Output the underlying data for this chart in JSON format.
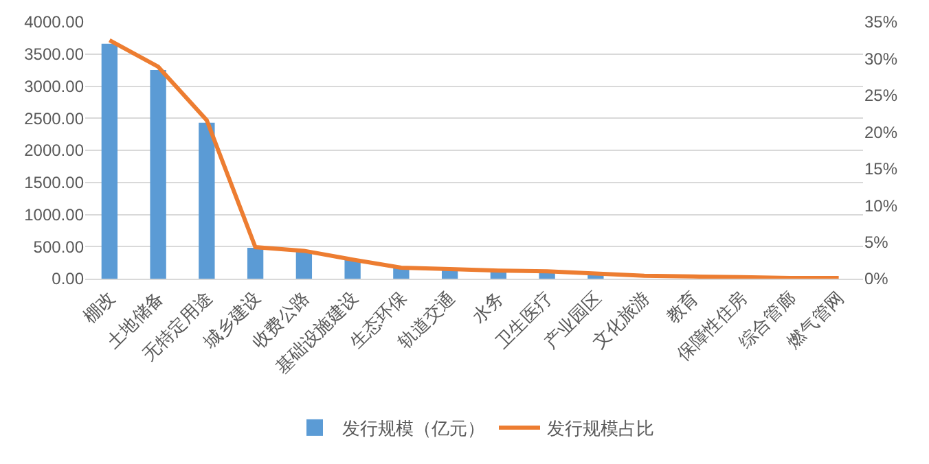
{
  "chart_data": {
    "type": "bar",
    "categories": [
      "棚改",
      "土地储备",
      "无特定用途",
      "城乡建设",
      "收费公路",
      "基础设施建设",
      "生态环保",
      "轨道交通",
      "水务",
      "卫生医疗",
      "产业园区",
      "文化旅游",
      "教育",
      "保障性住房",
      "综合管廊",
      "燃气管网"
    ],
    "series": [
      {
        "name": "发行规模（亿元）",
        "color": "#5b9bd5",
        "values": [
          3660,
          3250,
          2430,
          480,
          430,
          290,
          170,
          150,
          120,
          110,
          80,
          null,
          null,
          null,
          null,
          null
        ]
      },
      {
        "name": "发行规模占比",
        "type": "line",
        "axis": "y2",
        "color": "#ed7d31",
        "values": [
          32.5,
          28.9,
          21.6,
          4.3,
          3.8,
          2.6,
          1.5,
          1.3,
          1.1,
          1.0,
          0.7,
          0.4,
          0.3,
          0.2,
          0.1,
          0.1
        ]
      }
    ],
    "ylim": [
      0,
      4000
    ],
    "yticks": [
      {
        "value": 0,
        "label": "0.00"
      },
      {
        "value": 500,
        "label": "500.00"
      },
      {
        "value": 1000,
        "label": "1000.00"
      },
      {
        "value": 1500,
        "label": "1500.00"
      },
      {
        "value": 2000,
        "label": "2000.00"
      },
      {
        "value": 2500,
        "label": "2500.00"
      },
      {
        "value": 3000,
        "label": "3000.00"
      },
      {
        "value": 3500,
        "label": "3500.00"
      },
      {
        "value": 4000,
        "label": "4000.00"
      }
    ],
    "y2lim": [
      0,
      35
    ],
    "y2ticks": [
      {
        "value": 0,
        "label": "0%"
      },
      {
        "value": 5,
        "label": "5%"
      },
      {
        "value": 10,
        "label": "10%"
      },
      {
        "value": 15,
        "label": "15%"
      },
      {
        "value": 20,
        "label": "20%"
      },
      {
        "value": 25,
        "label": "25%"
      },
      {
        "value": 30,
        "label": "30%"
      },
      {
        "value": 35,
        "label": "35%"
      }
    ],
    "grid": "y",
    "legend": "bottom"
  }
}
